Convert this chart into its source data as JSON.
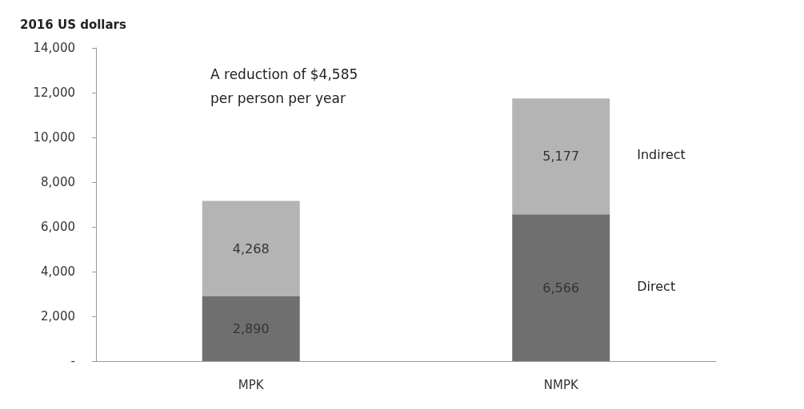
{
  "chart_data": {
    "type": "bar",
    "stacked": true,
    "ylabel": "2016 US dollars",
    "categories": [
      "MPK",
      "NMPK"
    ],
    "series": [
      {
        "name": "Direct",
        "color": "#6f6f6f",
        "values": [
          2890,
          6566
        ],
        "value_labels": [
          "2,890",
          "6,566"
        ]
      },
      {
        "name": "Indirect",
        "color": "#b4b4b4",
        "values": [
          4268,
          5177
        ],
        "value_labels": [
          "4,268",
          "5,177"
        ]
      }
    ],
    "ylim": [
      0,
      14000
    ],
    "yticks": [
      {
        "value": 0,
        "label": "-"
      },
      {
        "value": 2000,
        "label": "2,000"
      },
      {
        "value": 4000,
        "label": "4,000"
      },
      {
        "value": 6000,
        "label": "6,000"
      },
      {
        "value": 8000,
        "label": "8,000"
      },
      {
        "value": 10000,
        "label": "10,000"
      },
      {
        "value": 12000,
        "label": "12,000"
      },
      {
        "value": 14000,
        "label": "14,000"
      }
    ],
    "grid": false,
    "legend": false,
    "annotations": [
      "A reduction of $4,585\nper person per year"
    ]
  }
}
